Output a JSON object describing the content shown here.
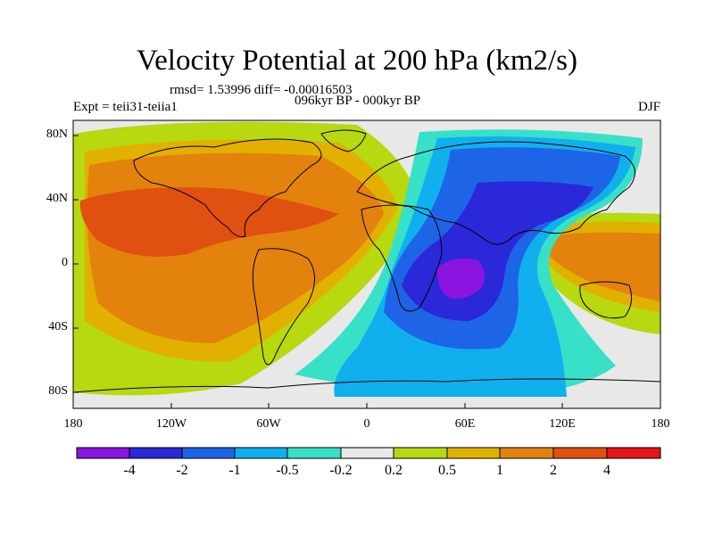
{
  "title": "Velocity Potential at 200 hPa (km2/s)",
  "stats": "rmsd= 1.53996 diff= -0.00016503",
  "experiment": "Expt = teii31-teiia1",
  "period": "096kyr BP - 000kyr BP",
  "season": "DJF",
  "lat_ticks": [
    "80N",
    "40N",
    "0",
    "40S",
    "80S"
  ],
  "lon_ticks": [
    "180",
    "120W",
    "60W",
    "0",
    "60E",
    "120E",
    "180"
  ],
  "colorbar": {
    "labels": [
      "-4",
      "-2",
      "-1",
      "-0.5",
      "-0.2",
      "0.2",
      "0.5",
      "1",
      "2",
      "4"
    ],
    "colors": [
      "#8a14e0",
      "#2a28d8",
      "#1e64e6",
      "#10b0ee",
      "#38e0c8",
      "#e8e8e8",
      "#b8d810",
      "#e2b000",
      "#e4820e",
      "#e05010",
      "#e61414"
    ]
  },
  "chart_data": {
    "type": "heatmap",
    "title": "Velocity Potential at 200 hPa (km2/s)",
    "units": "km2/s",
    "x_ticks": [
      "180",
      "120W",
      "60W",
      "0",
      "60E",
      "120E",
      "180"
    ],
    "y_ticks": [
      "80N",
      "40N",
      "0",
      "40S",
      "80S"
    ],
    "contour_levels": [
      -4,
      -2,
      -1,
      -0.5,
      -0.2,
      0.2,
      0.5,
      1,
      2,
      4
    ],
    "features": [
      {
        "region": "central Pacific to Americas",
        "value_range": "2 to 4",
        "note": "broad positive maximum"
      },
      {
        "region": "central Pacific ~30N",
        "value_range": "> 2",
        "note": "strongest positive core"
      },
      {
        "region": "Indian Ocean / eastern Africa ~15S",
        "value_range": "< -4",
        "note": "negative minimum"
      },
      {
        "region": "Maritime Continent",
        "value_range": "1 to 2",
        "note": "secondary positive area"
      }
    ]
  }
}
